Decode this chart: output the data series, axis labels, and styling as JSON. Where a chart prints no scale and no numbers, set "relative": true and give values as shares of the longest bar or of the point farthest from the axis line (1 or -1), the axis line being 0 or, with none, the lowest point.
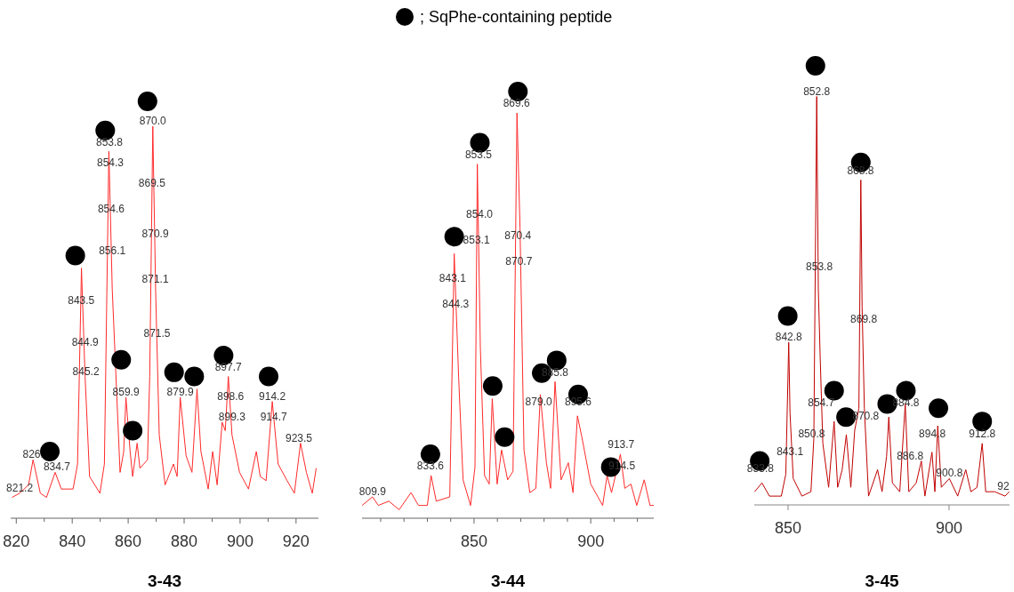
{
  "chart_data": [
    {
      "type": "line",
      "relative": true,
      "xlabel": "3-43",
      "xlim": [
        818,
        928
      ],
      "legend": "top",
      "xticks": [
        820,
        {
          "value": 830,
          "label": null
        },
        840,
        {
          "value": 850,
          "label": null
        },
        860,
        {
          "value": 870,
          "label": null
        },
        880,
        {
          "value": 890,
          "label": null
        },
        900,
        {
          "value": 910,
          "label": null
        },
        920
      ],
      "series": [
        {
          "color": "#ff2a2a",
          "x": [
            818.5,
            821.2,
            824.4,
            826.0,
            828.6,
            830.8,
            833.9,
            836.1,
            840.3,
            841.9,
            843.3,
            844.6,
            846.2,
            849.9,
            851.5,
            853.1,
            854.3,
            857.1,
            858.4,
            859.2,
            860.7,
            861.6,
            863.2,
            864.2,
            866.9,
            867.7,
            868.8,
            869.8,
            871.1,
            873.2,
            876.2,
            877.5,
            878.6,
            880.7,
            882.8,
            884.6,
            886.0,
            888.6,
            890.2,
            891.8,
            893.6,
            894.7,
            895.8,
            897.1,
            899.8,
            903.0,
            905.8,
            907.2,
            909.3,
            911.5,
            913.6,
            916.8,
            919.4,
            921.6,
            923.7,
            925.8,
            927.2
          ],
          "values": [
            0.05,
            0.06,
            0.08,
            0.14,
            0.06,
            0.05,
            0.11,
            0.07,
            0.07,
            0.13,
            0.6,
            0.34,
            0.1,
            0.06,
            0.13,
            0.88,
            0.55,
            0.11,
            0.16,
            0.29,
            0.16,
            0.1,
            0.18,
            0.12,
            0.14,
            0.34,
            0.94,
            0.55,
            0.2,
            0.08,
            0.13,
            0.1,
            0.29,
            0.15,
            0.11,
            0.31,
            0.16,
            0.07,
            0.16,
            0.08,
            0.23,
            0.21,
            0.34,
            0.2,
            0.11,
            0.07,
            0.16,
            0.1,
            0.09,
            0.28,
            0.13,
            0.09,
            0.06,
            0.18,
            0.11,
            0.06,
            0.12
          ]
        },
        {
          "type": "scatter",
          "name": "; SqPhe-containing peptide",
          "color": "#000000",
          "marker": "circle",
          "x": [
            866.9,
            851.8,
            841.1,
            857.5,
            861.6,
            876.4,
            883.6,
            894.1,
            910.2,
            832.0
          ],
          "values": [
            1.0,
            0.93,
            0.63,
            0.38,
            0.21,
            0.35,
            0.34,
            0.39,
            0.34,
            0.16
          ]
        }
      ],
      "annotations": [
        {
          "text": "870.0",
          "x": 868.8,
          "y": 0.94
        },
        {
          "text": "853.8",
          "x": 853.3,
          "y": 0.89
        },
        {
          "text": "854.3",
          "x": 853.6,
          "y": 0.84
        },
        {
          "text": "869.5",
          "x": 868.5,
          "y": 0.79
        },
        {
          "text": "854.6",
          "x": 853.9,
          "y": 0.73
        },
        {
          "text": "870.9",
          "x": 869.7,
          "y": 0.67
        },
        {
          "text": "856.1",
          "x": 854.3,
          "y": 0.63
        },
        {
          "text": "871.1",
          "x": 869.7,
          "y": 0.56
        },
        {
          "text": "843.5",
          "x": 843.2,
          "y": 0.51
        },
        {
          "text": "871.5",
          "x": 870.3,
          "y": 0.43
        },
        {
          "text": "844.9",
          "x": 844.6,
          "y": 0.41
        },
        {
          "text": "845.2",
          "x": 844.9,
          "y": 0.34
        },
        {
          "text": "897.7",
          "x": 895.8,
          "y": 0.35
        },
        {
          "text": "859.9",
          "x": 859.2,
          "y": 0.29
        },
        {
          "text": "879.9",
          "x": 878.6,
          "y": 0.29
        },
        {
          "text": "914.2",
          "x": 911.5,
          "y": 0.28
        },
        {
          "text": "898.6",
          "x": 896.6,
          "y": 0.28
        },
        {
          "text": "899.3",
          "x": 897.1,
          "y": 0.23
        },
        {
          "text": "914.7",
          "x": 912.0,
          "y": 0.23
        },
        {
          "text": "923.5",
          "x": 921.0,
          "y": 0.18
        },
        {
          "text": "826.",
          "x": 826.0,
          "y": 0.14
        },
        {
          "text": "834.7",
          "x": 834.5,
          "y": 0.11
        },
        {
          "text": "821.2",
          "x": 821.2,
          "y": 0.06
        }
      ]
    },
    {
      "type": "line",
      "relative": true,
      "xlabel": "3-44",
      "xlim": [
        802,
        927
      ],
      "xticks": [
        {
          "value": 810,
          "label": null
        },
        {
          "value": 820,
          "label": null
        },
        {
          "value": 830,
          "label": null
        },
        {
          "value": 840,
          "label": null
        },
        850,
        {
          "value": 860,
          "label": null
        },
        {
          "value": 870,
          "label": null
        },
        {
          "value": 880,
          "label": null
        },
        {
          "value": 890,
          "label": null
        },
        900,
        {
          "value": 910,
          "label": null
        },
        {
          "value": 920,
          "label": null
        }
      ],
      "series": [
        {
          "color": "#ff2a2a",
          "x": [
            802.0,
            806.5,
            809.0,
            813.5,
            817.9,
            823.0,
            826.2,
            830.0,
            831.6,
            833.8,
            839.6,
            841.5,
            843.4,
            845.3,
            848.5,
            850.4,
            851.4,
            852.7,
            854.5,
            856.5,
            857.8,
            859.9,
            861.8,
            864.4,
            866.7,
            868.4,
            869.7,
            871.4,
            873.9,
            876.5,
            878.4,
            881.0,
            882.8,
            884.7,
            887.3,
            890.4,
            892.4,
            894.3,
            896.2,
            900.0,
            905.1,
            907.0,
            908.9,
            912.7,
            914.6,
            917.2,
            919.7,
            922.9,
            925.4,
            927.0
          ],
          "values": [
            0.03,
            0.05,
            0.03,
            0.04,
            0.02,
            0.06,
            0.03,
            0.03,
            0.1,
            0.04,
            0.05,
            0.62,
            0.33,
            0.09,
            0.03,
            0.12,
            0.83,
            0.4,
            0.1,
            0.08,
            0.28,
            0.08,
            0.16,
            0.09,
            0.11,
            0.95,
            0.68,
            0.16,
            0.06,
            0.07,
            0.29,
            0.13,
            0.07,
            0.32,
            0.09,
            0.13,
            0.06,
            0.24,
            0.19,
            0.08,
            0.03,
            0.1,
            0.06,
            0.15,
            0.07,
            0.08,
            0.03,
            0.09,
            0.03,
            0.03
          ]
        },
        {
          "type": "scatter",
          "color": "#000000",
          "marker": "circle",
          "x": [
            868.8,
            852.5,
            841.5,
            858.0,
            863.1,
            879.0,
            885.4,
            894.6,
            831.3,
            908.6
          ],
          "values": [
            1.0,
            0.88,
            0.66,
            0.31,
            0.19,
            0.34,
            0.37,
            0.29,
            0.15,
            0.12
          ]
        }
      ],
      "annotations": [
        {
          "text": "869.6",
          "x": 868.2,
          "y": 0.96
        },
        {
          "text": "853.5",
          "x": 851.9,
          "y": 0.84
        },
        {
          "text": "854.0",
          "x": 852.3,
          "y": 0.7
        },
        {
          "text": "853.1",
          "x": 851.0,
          "y": 0.64
        },
        {
          "text": "870.4",
          "x": 868.8,
          "y": 0.65
        },
        {
          "text": "870.7",
          "x": 869.2,
          "y": 0.59
        },
        {
          "text": "843.1",
          "x": 840.8,
          "y": 0.55
        },
        {
          "text": "844.3",
          "x": 842.1,
          "y": 0.49
        },
        {
          "text": "885.8",
          "x": 884.7,
          "y": 0.33
        },
        {
          "text": "879.0",
          "x": 877.7,
          "y": 0.26
        },
        {
          "text": "895.6",
          "x": 894.6,
          "y": 0.26
        },
        {
          "text": "913.7",
          "x": 913.0,
          "y": 0.16
        },
        {
          "text": "914.5",
          "x": 913.3,
          "y": 0.11
        },
        {
          "text": "833.6",
          "x": 831.3,
          "y": 0.11
        },
        {
          "text": "809.9",
          "x": 806.5,
          "y": 0.05
        }
      ]
    },
    {
      "type": "line",
      "relative": true,
      "xlabel": "3-45",
      "xlim": [
        839.5,
        918.8
      ],
      "xticks": [
        850,
        900
      ],
      "series": [
        {
          "color": "#c00000",
          "x": [
            839.6,
            841.9,
            844.2,
            847.9,
            849.3,
            850.2,
            850.6,
            851.6,
            854.3,
            857.1,
            858.0,
            858.9,
            859.4,
            860.0,
            860.8,
            862.6,
            864.3,
            865.4,
            866.8,
            868.1,
            869.5,
            870.7,
            872.0,
            872.6,
            873.0,
            873.7,
            875.0,
            877.8,
            879.2,
            880.6,
            881.3,
            882.4,
            884.7,
            886.4,
            887.5,
            889.8,
            891.4,
            892.5,
            894.7,
            895.6,
            896.5,
            897.6,
            900.1,
            902.7,
            905.2,
            906.8,
            908.7,
            910.3,
            911.4,
            914.2,
            917.4,
            918.7
          ],
          "values": [
            0.03,
            0.05,
            0.02,
            0.02,
            0.07,
            0.37,
            0.21,
            0.06,
            0.02,
            0.03,
            0.15,
            0.93,
            0.49,
            0.33,
            0.14,
            0.04,
            0.19,
            0.04,
            0.08,
            0.16,
            0.04,
            0.17,
            0.22,
            0.74,
            0.45,
            0.22,
            0.02,
            0.08,
            0.03,
            0.11,
            0.2,
            0.05,
            0.03,
            0.23,
            0.03,
            0.05,
            0.1,
            0.02,
            0.12,
            0.03,
            0.18,
            0.04,
            0.06,
            0.02,
            0.08,
            0.03,
            0.04,
            0.14,
            0.03,
            0.03,
            0.02,
            0.03
          ]
        },
        {
          "type": "scatter",
          "color": "#000000",
          "marker": "circle",
          "x": [
            858.5,
            872.6,
            849.9,
            864.3,
            868.0,
            880.8,
            886.6,
            896.7,
            910.3,
            841.2
          ],
          "values": [
            1.0,
            0.78,
            0.43,
            0.26,
            0.2,
            0.23,
            0.26,
            0.22,
            0.19,
            0.1
          ]
        }
      ],
      "annotations": [
        {
          "text": "852.8",
          "x": 858.9,
          "y": 0.93
        },
        {
          "text": "868.8",
          "x": 872.5,
          "y": 0.75
        },
        {
          "text": "853.8",
          "x": 859.7,
          "y": 0.53
        },
        {
          "text": "869.8",
          "x": 873.5,
          "y": 0.41
        },
        {
          "text": "842.8",
          "x": 850.2,
          "y": 0.37
        },
        {
          "text": "854.7",
          "x": 860.3,
          "y": 0.22
        },
        {
          "text": "870.8",
          "x": 874.1,
          "y": 0.19
        },
        {
          "text": "884.8",
          "x": 886.6,
          "y": 0.22
        },
        {
          "text": "850.8",
          "x": 857.3,
          "y": 0.15
        },
        {
          "text": "843.1",
          "x": 850.6,
          "y": 0.11
        },
        {
          "text": "894.8",
          "x": 894.8,
          "y": 0.15
        },
        {
          "text": "912.8",
          "x": 910.3,
          "y": 0.15
        },
        {
          "text": "886.8",
          "x": 887.9,
          "y": 0.1
        },
        {
          "text": "900.8",
          "x": 900.1,
          "y": 0.06
        },
        {
          "text": "833.8",
          "x": 841.4,
          "y": 0.07
        },
        {
          "text": "92",
          "x": 918.7,
          "y": 0.03
        }
      ]
    }
  ]
}
